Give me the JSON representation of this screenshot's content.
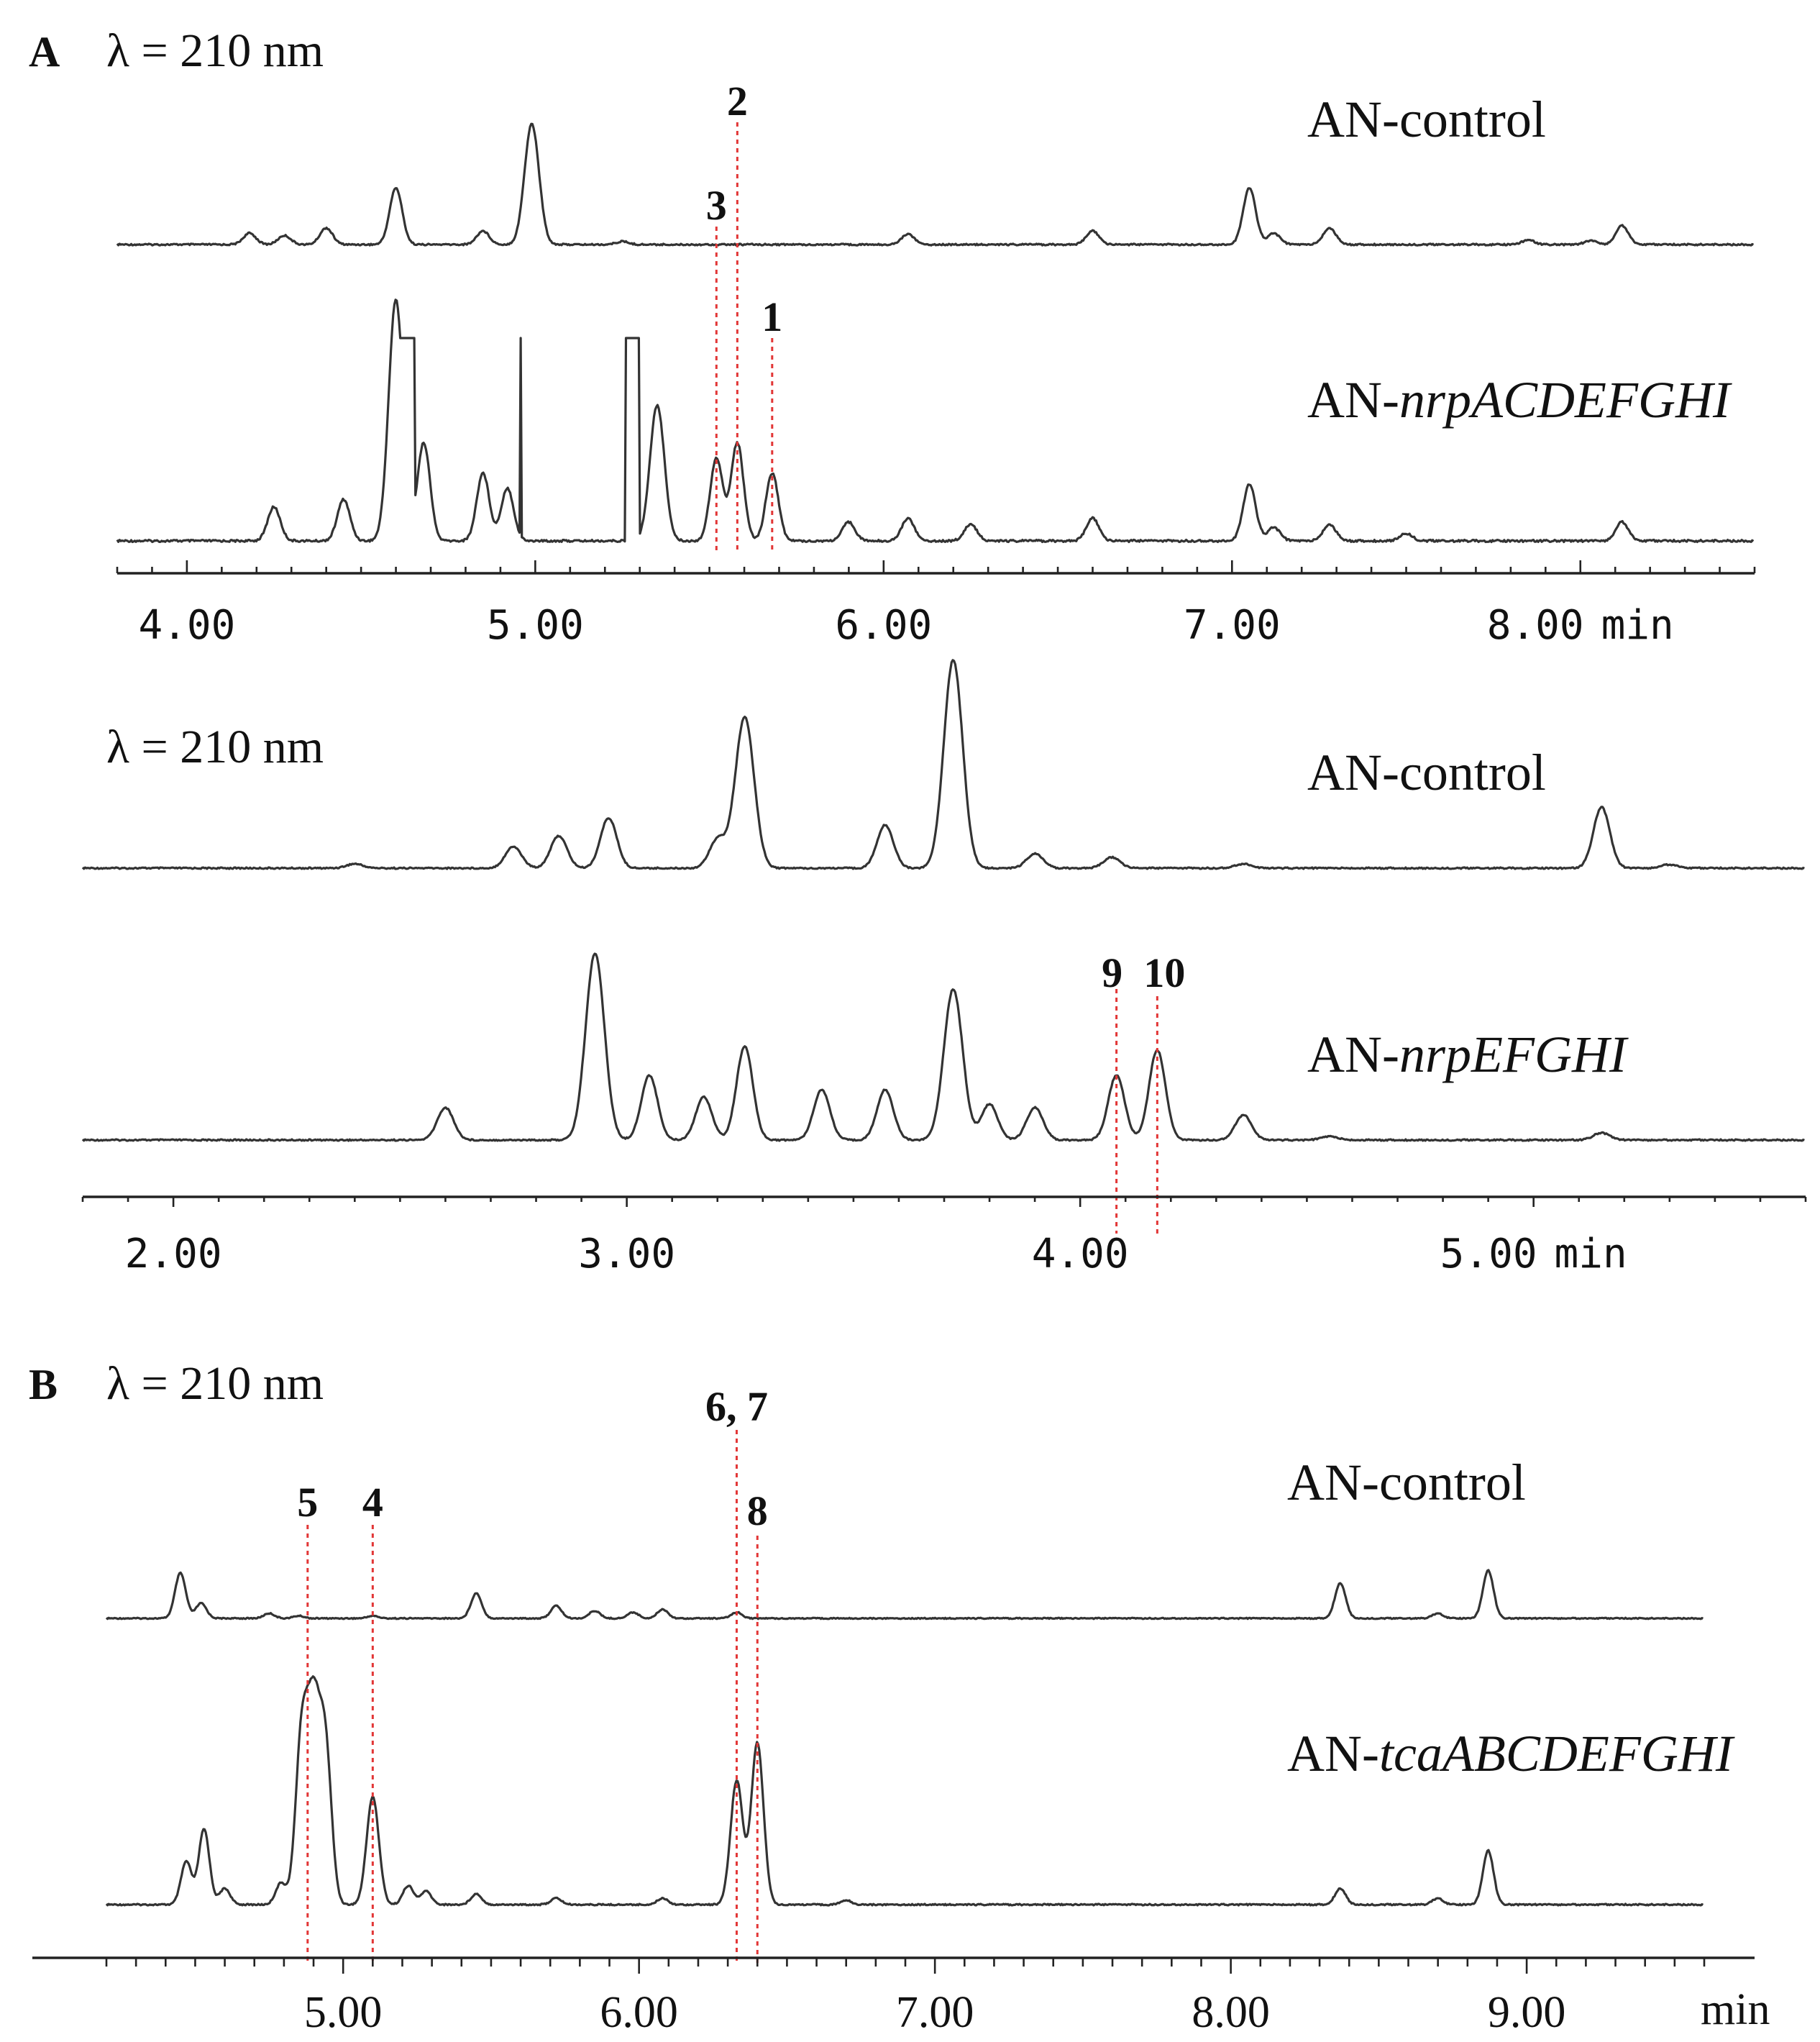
{
  "chart_data": [
    {
      "type": "line",
      "panel_label": "A",
      "wavelength_label": "λ = 210 nm",
      "x_unit": "min",
      "xlim": [
        3.8,
        8.5
      ],
      "x_ticks": [
        4.0,
        5.0,
        6.0,
        7.0,
        8.0
      ],
      "x_tick_labels": [
        "4.00",
        "5.00",
        "6.00",
        "7.00",
        "8.00"
      ],
      "series": [
        {
          "name": "AN-control",
          "name_prefix": "AN-",
          "name_gene": "control",
          "peaks": [
            [
              4.18,
              0.15
            ],
            [
              4.28,
              0.12
            ],
            [
              4.4,
              0.22
            ],
            [
              4.6,
              0.75
            ],
            [
              4.85,
              0.18
            ],
            [
              4.99,
              1.6
            ],
            [
              5.25,
              0.04
            ],
            [
              6.07,
              0.14
            ],
            [
              6.6,
              0.18
            ],
            [
              7.05,
              0.75
            ],
            [
              7.12,
              0.15
            ],
            [
              7.28,
              0.22
            ],
            [
              7.85,
              0.06
            ],
            [
              8.03,
              0.05
            ],
            [
              8.12,
              0.25
            ]
          ]
        },
        {
          "name": "AN-nrpACDEFGHI",
          "name_prefix": "AN-",
          "name_gene": "nrpACDEFGHI",
          "peaks": [
            [
              4.25,
              0.45
            ],
            [
              4.45,
              0.55
            ],
            [
              4.6,
              3.2
            ],
            [
              4.68,
              1.3
            ],
            [
              4.85,
              0.9
            ],
            [
              4.92,
              0.7
            ],
            [
              5.35,
              1.8
            ],
            [
              5.52,
              1.1
            ],
            [
              5.58,
              1.3
            ],
            [
              5.68,
              0.9
            ],
            [
              5.9,
              0.25
            ],
            [
              6.07,
              0.3
            ],
            [
              6.25,
              0.22
            ],
            [
              6.6,
              0.3
            ],
            [
              7.05,
              0.75
            ],
            [
              7.12,
              0.18
            ],
            [
              7.28,
              0.22
            ],
            [
              7.5,
              0.1
            ],
            [
              8.12,
              0.25
            ]
          ],
          "clipped_signal_beyond_axis": true
        }
      ],
      "annotations": [
        {
          "label": "3",
          "x": 5.52
        },
        {
          "label": "2",
          "x": 5.58
        },
        {
          "label": "1",
          "x": 5.68
        }
      ]
    },
    {
      "type": "line",
      "panel_label": "",
      "wavelength_label": "λ = 210 nm",
      "x_unit": "min",
      "xlim": [
        1.8,
        5.6
      ],
      "x_ticks": [
        2.0,
        3.0,
        4.0,
        5.0
      ],
      "x_tick_labels": [
        "2.00",
        "3.00",
        "4.00",
        "5.00"
      ],
      "series": [
        {
          "name": "AN-control",
          "name_prefix": "AN-",
          "name_gene": "control",
          "peaks": [
            [
              2.4,
              0.06
            ],
            [
              2.75,
              0.3
            ],
            [
              2.85,
              0.45
            ],
            [
              2.96,
              0.7
            ],
            [
              3.2,
              0.4
            ],
            [
              3.26,
              2.1
            ],
            [
              3.57,
              0.6
            ],
            [
              3.72,
              2.9
            ],
            [
              3.9,
              0.2
            ],
            [
              4.07,
              0.15
            ],
            [
              4.36,
              0.06
            ],
            [
              5.15,
              0.85
            ],
            [
              5.3,
              0.05
            ]
          ]
        },
        {
          "name": "AN-nrpEFGHI",
          "name_prefix": "AN-",
          "name_gene": "nrpEFGHI",
          "peaks": [
            [
              2.6,
              0.45
            ],
            [
              2.93,
              2.6
            ],
            [
              3.05,
              0.9
            ],
            [
              3.17,
              0.6
            ],
            [
              3.26,
              1.3
            ],
            [
              3.43,
              0.7
            ],
            [
              3.57,
              0.7
            ],
            [
              3.72,
              2.1
            ],
            [
              3.8,
              0.5
            ],
            [
              3.9,
              0.45
            ],
            [
              4.08,
              0.9
            ],
            [
              4.17,
              1.25
            ],
            [
              4.36,
              0.35
            ],
            [
              4.55,
              0.05
            ],
            [
              5.15,
              0.1
            ]
          ]
        }
      ],
      "annotations": [
        {
          "label": "9",
          "x": 4.08
        },
        {
          "label": "10",
          "x": 4.17
        }
      ]
    },
    {
      "type": "line",
      "panel_label": "B",
      "wavelength_label": "λ = 210 nm",
      "x_unit": "min",
      "xlim": [
        4.2,
        9.6
      ],
      "x_ticks": [
        5.0,
        6.0,
        7.0,
        8.0,
        9.0
      ],
      "x_tick_labels": [
        "5.00",
        "6.00",
        "7.00",
        "8.00",
        "9.00"
      ],
      "series": [
        {
          "name": "AN-control",
          "name_prefix": "AN-",
          "name_gene": "control",
          "peaks": [
            [
              4.45,
              0.9
            ],
            [
              4.52,
              0.3
            ],
            [
              4.75,
              0.1
            ],
            [
              4.85,
              0.05
            ],
            [
              5.1,
              0.05
            ],
            [
              5.45,
              0.5
            ],
            [
              5.72,
              0.25
            ],
            [
              5.85,
              0.15
            ],
            [
              5.98,
              0.12
            ],
            [
              6.08,
              0.18
            ],
            [
              6.33,
              0.12
            ],
            [
              8.37,
              0.7
            ],
            [
              8.7,
              0.1
            ],
            [
              8.87,
              0.95
            ]
          ]
        },
        {
          "name": "AN-tcaABCDEFGHI",
          "name_prefix": "AN-",
          "name_gene": "tcaABCDEFGHI",
          "peaks": [
            [
              4.47,
              0.8
            ],
            [
              4.53,
              1.4
            ],
            [
              4.6,
              0.3
            ],
            [
              4.79,
              0.4
            ],
            [
              4.86,
              3.1
            ],
            [
              4.9,
              3.3
            ],
            [
              4.94,
              2.9
            ],
            [
              5.1,
              2.0
            ],
            [
              5.22,
              0.35
            ],
            [
              5.28,
              0.25
            ],
            [
              5.45,
              0.2
            ],
            [
              5.72,
              0.12
            ],
            [
              6.08,
              0.12
            ],
            [
              6.33,
              2.3
            ],
            [
              6.4,
              3.0
            ],
            [
              6.7,
              0.08
            ],
            [
              8.37,
              0.3
            ],
            [
              8.7,
              0.12
            ],
            [
              8.87,
              1.0
            ]
          ]
        }
      ],
      "annotations": [
        {
          "label": "5",
          "x": 4.88
        },
        {
          "label": "4",
          "x": 5.1
        },
        {
          "label": "6, 7",
          "x": 6.33
        },
        {
          "label": "8",
          "x": 6.4
        }
      ]
    }
  ]
}
